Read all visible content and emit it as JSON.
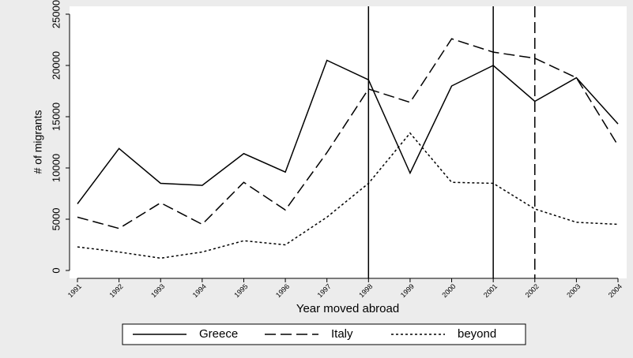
{
  "chart_data": {
    "type": "line",
    "x_label": "Year moved abroad",
    "y_label": "# of migrants",
    "x": [
      1991,
      1992,
      1993,
      1994,
      1995,
      1996,
      1997,
      1998,
      1999,
      2000,
      2001,
      2002,
      2003,
      2004
    ],
    "series": [
      {
        "name": "Greece",
        "color": "#000000",
        "dash": "solid",
        "values": [
          6500,
          11900,
          8500,
          8300,
          11400,
          9600,
          20500,
          18600,
          9500,
          18000,
          20000,
          16500,
          18800,
          14300
        ]
      },
      {
        "name": "Italy",
        "color": "#000000",
        "dash": "long",
        "values": [
          5200,
          4100,
          6600,
          4500,
          8600,
          5900,
          11500,
          17700,
          16400,
          22600,
          21300,
          20700,
          18800,
          12200
        ]
      },
      {
        "name": "beyond",
        "color": "#000000",
        "dash": "short",
        "values": [
          2300,
          1800,
          1200,
          1800,
          2900,
          2500,
          5200,
          8500,
          13400,
          8600,
          8500,
          6000,
          4700,
          4500
        ]
      }
    ],
    "vlines": [
      {
        "x": 1998,
        "dash": "solid"
      },
      {
        "x": 2001,
        "dash": "solid"
      },
      {
        "x": 2002,
        "dash": "long"
      }
    ],
    "xlim": [
      1991,
      2004
    ],
    "xticks": [
      1991,
      1992,
      1993,
      1994,
      1995,
      1996,
      1997,
      1998,
      1999,
      2000,
      2001,
      2002,
      2003,
      2004
    ],
    "ylim": [
      0,
      25000
    ],
    "yticks": [
      0,
      5000,
      10000,
      15000,
      20000,
      25000
    ],
    "grid": false,
    "legend": "bottom"
  }
}
